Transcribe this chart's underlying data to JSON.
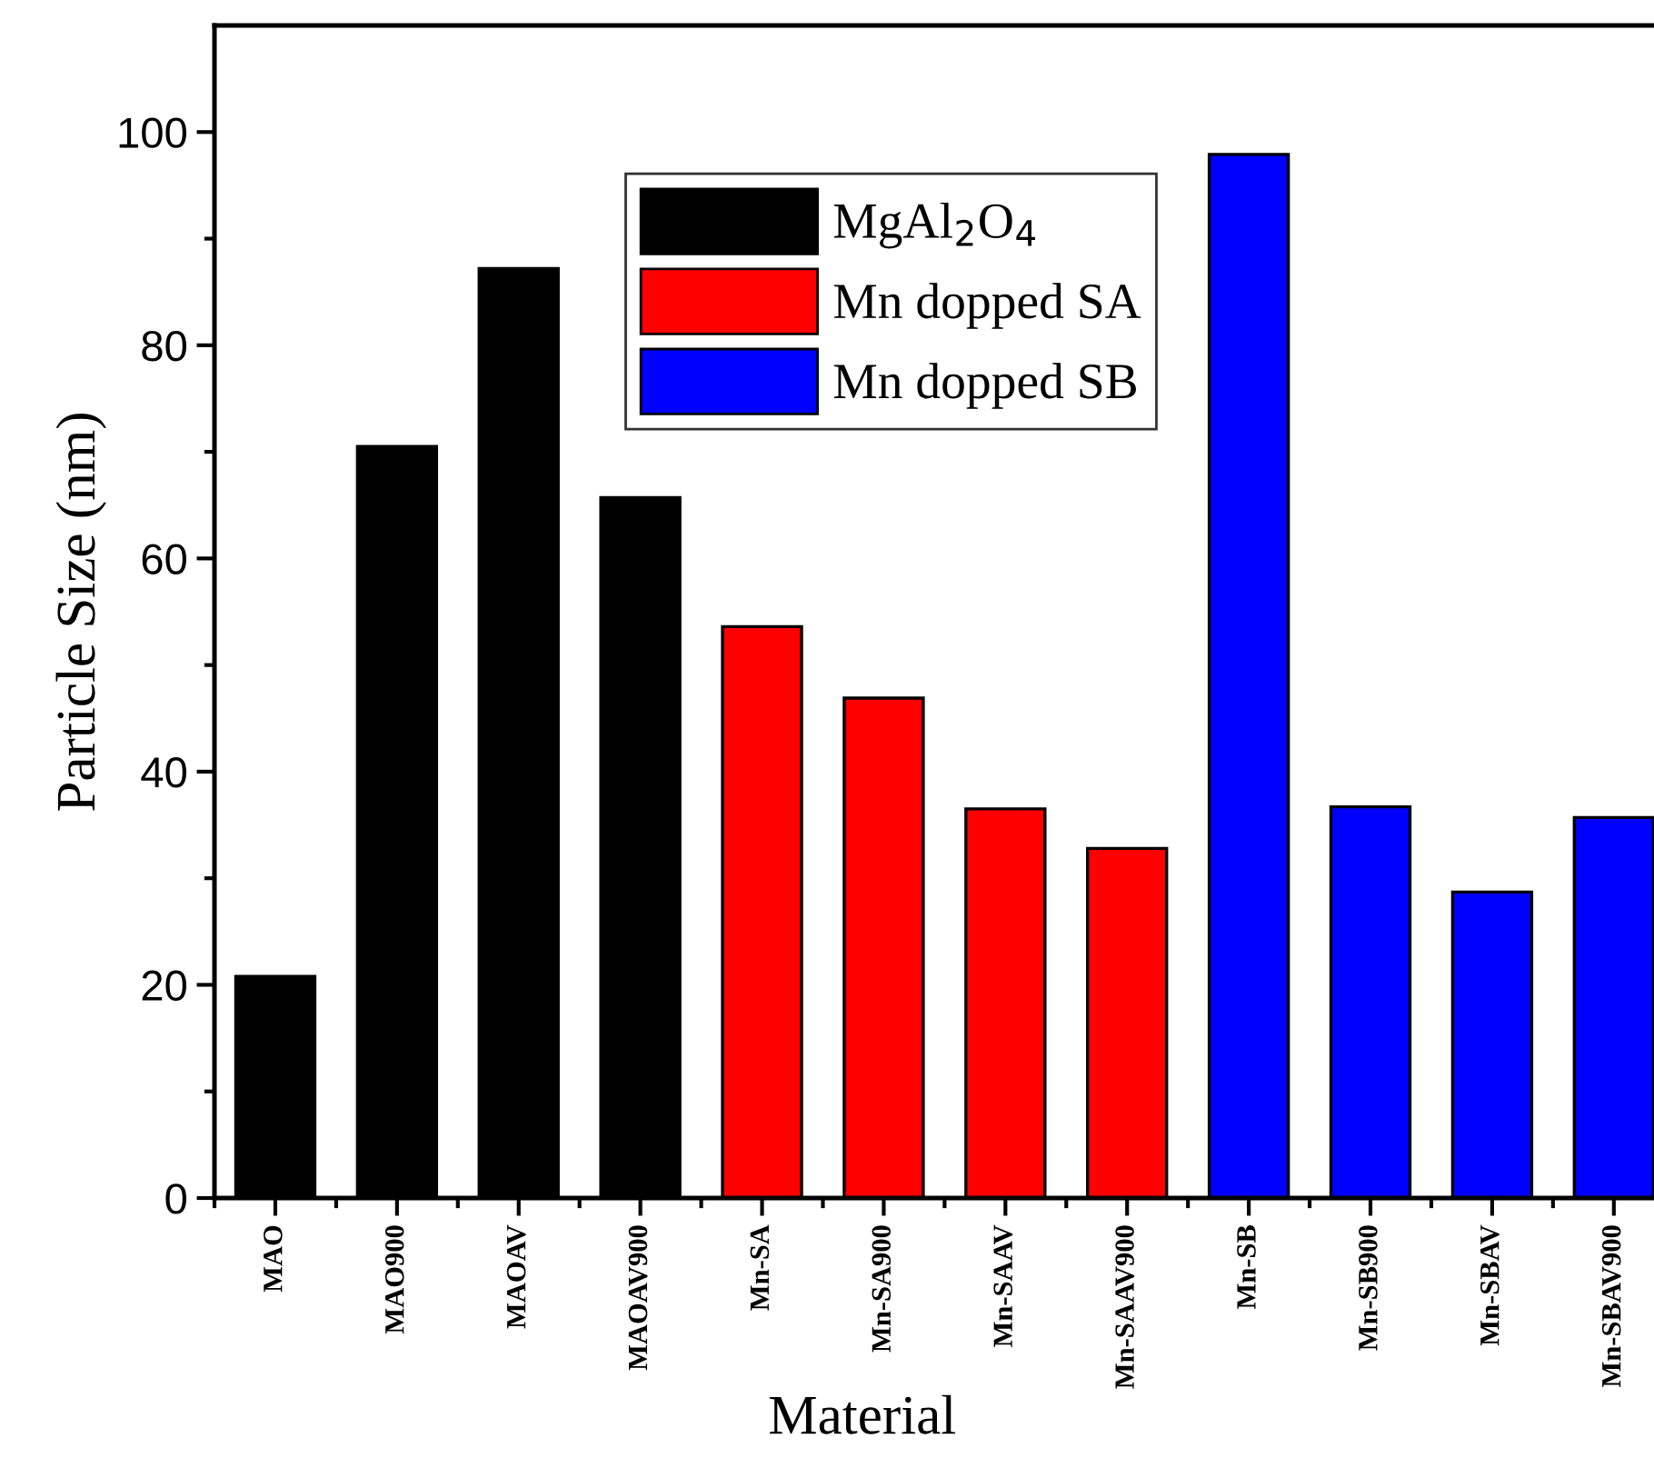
{
  "chart_data": {
    "type": "bar",
    "xlabel": "Material",
    "ylabel": "Particle Size (nm)",
    "categories": [
      "MAO",
      "MAO900",
      "MAOAV",
      "MAOAV900",
      "Mn-SA",
      "Mn-SA900",
      "Mn-SAAV",
      "Mn-SAAV900",
      "Mn-SB",
      "Mn-SB900",
      "Mn-SBAV",
      "Mn-SBAV900"
    ],
    "series": [
      {
        "name": "MgAl$_{2}$O$_{4}$",
        "color": "#000000",
        "values": [
          20.8,
          70.5,
          87.2,
          65.7,
          null,
          null,
          null,
          null,
          null,
          null,
          null,
          null
        ]
      },
      {
        "name": "Mn dopped SA",
        "color": "#ff0000",
        "values": [
          null,
          null,
          null,
          null,
          53.6,
          46.9,
          36.5,
          32.8,
          null,
          null,
          null,
          null
        ]
      },
      {
        "name": "Mn dopped SB",
        "color": "#0000ff",
        "values": [
          null,
          null,
          null,
          null,
          null,
          null,
          null,
          null,
          97.9,
          36.7,
          28.7,
          35.7
        ]
      }
    ],
    "ylim": [
      0,
      110
    ],
    "yticks": [
      0,
      20,
      40,
      60,
      80,
      100
    ],
    "grid": false,
    "legend": "top"
  }
}
